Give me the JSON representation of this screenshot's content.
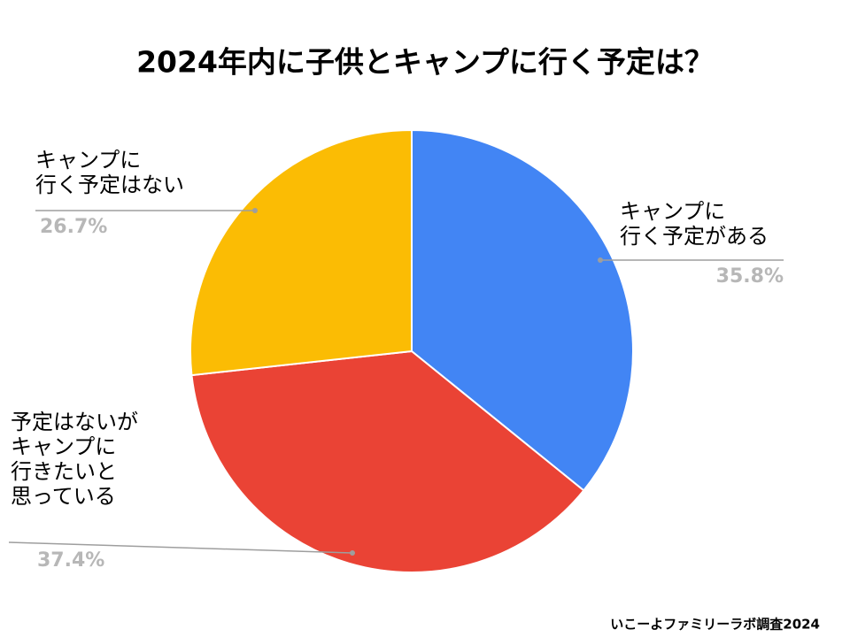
{
  "chart_data": {
    "type": "pie",
    "title": "2024年内に子供とキャンプに行く予定は？",
    "categories": [
      [
        "キャンプに",
        "行く予定がある"
      ],
      [
        "予定はないが",
        "キャンプに",
        "行きたいと",
        "思っている"
      ],
      [
        "キャンプに",
        "行く予定はない"
      ]
    ],
    "values": [
      35.8,
      37.4,
      26.7
    ],
    "value_labels": [
      "35.8%",
      "37.4%",
      "26.7%"
    ],
    "colors": [
      "#4285f4",
      "#ea4335",
      "#fbbc04"
    ],
    "source": "いこーよファミリーラボ調査2024"
  }
}
